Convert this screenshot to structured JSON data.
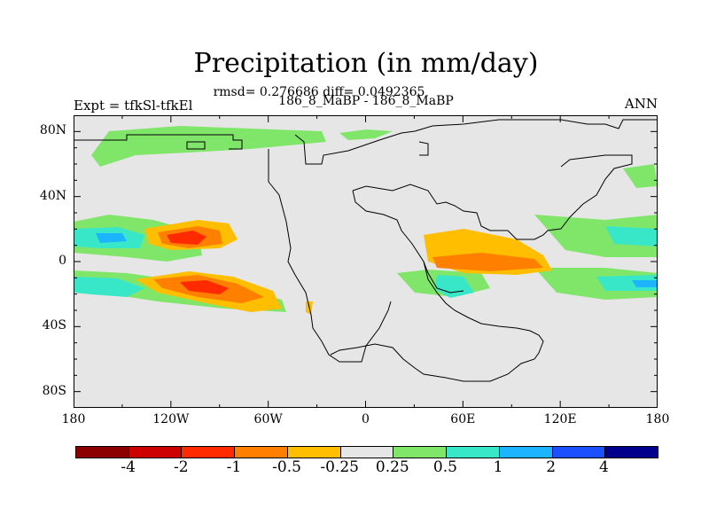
{
  "header": {
    "title": "Precipitation (in mm/day)",
    "stats": "rmsd= 0.276686 diff= 0.0492365",
    "subtitle": "186_8_MaBP - 186_8_MaBP",
    "left_title": "Expt = tfkSl-tfkEl",
    "right_title": "ANN"
  },
  "chart_data": {
    "type": "heatmap",
    "title": "Precipitation (in mm/day)",
    "units": "mm/day",
    "projection": "cylindrical equidistant (global lat-lon map)",
    "x_axis": {
      "ticks": [
        "180",
        "120W",
        "60W",
        "0",
        "60E",
        "120E",
        "180"
      ],
      "values": [
        -180,
        -120,
        -60,
        0,
        60,
        120,
        180
      ],
      "range": [
        -180,
        180
      ]
    },
    "y_axis": {
      "ticks": [
        "80N",
        "40N",
        "0",
        "40S",
        "80S"
      ],
      "values": [
        80,
        40,
        0,
        -40,
        -80
      ],
      "range": [
        -90,
        90
      ]
    },
    "colorbar": {
      "labels": [
        "-4",
        "-2",
        "-1",
        "-0.5",
        "-0.25",
        "0.25",
        "0.5",
        "1",
        "2",
        "4"
      ],
      "colors": [
        "#8c0000",
        "#cc0000",
        "#ff2a00",
        "#ff7f00",
        "#ffbf00",
        "#e6e6e6",
        "#80e66a",
        "#38e6c8",
        "#1cb4ff",
        "#1c50ff",
        "#00008c"
      ]
    },
    "background_color": "#e6e6e6",
    "anomalies": [
      {
        "lon": -138,
        "lat": 15,
        "rx": 13,
        "ry": 4,
        "level": "0.5"
      },
      {
        "lon": -108,
        "lat": 13,
        "rx": 11,
        "ry": 4,
        "level": "-1"
      },
      {
        "lon": -110,
        "lat": -15,
        "rx": 20,
        "ry": 4,
        "level": "-1"
      },
      {
        "lon": 60,
        "lat": 0,
        "rx": 23,
        "ry": 4,
        "level": "-0.5"
      },
      {
        "lon": 160,
        "lat": -12,
        "rx": 12,
        "ry": 3,
        "level": "0.5"
      },
      {
        "lon": -60,
        "lat": 75,
        "rx": 35,
        "ry": 4,
        "level": "0.25"
      },
      {
        "lon": 55,
        "lat": -15,
        "rx": 12,
        "ry": 4,
        "level": "0.25"
      }
    ]
  }
}
